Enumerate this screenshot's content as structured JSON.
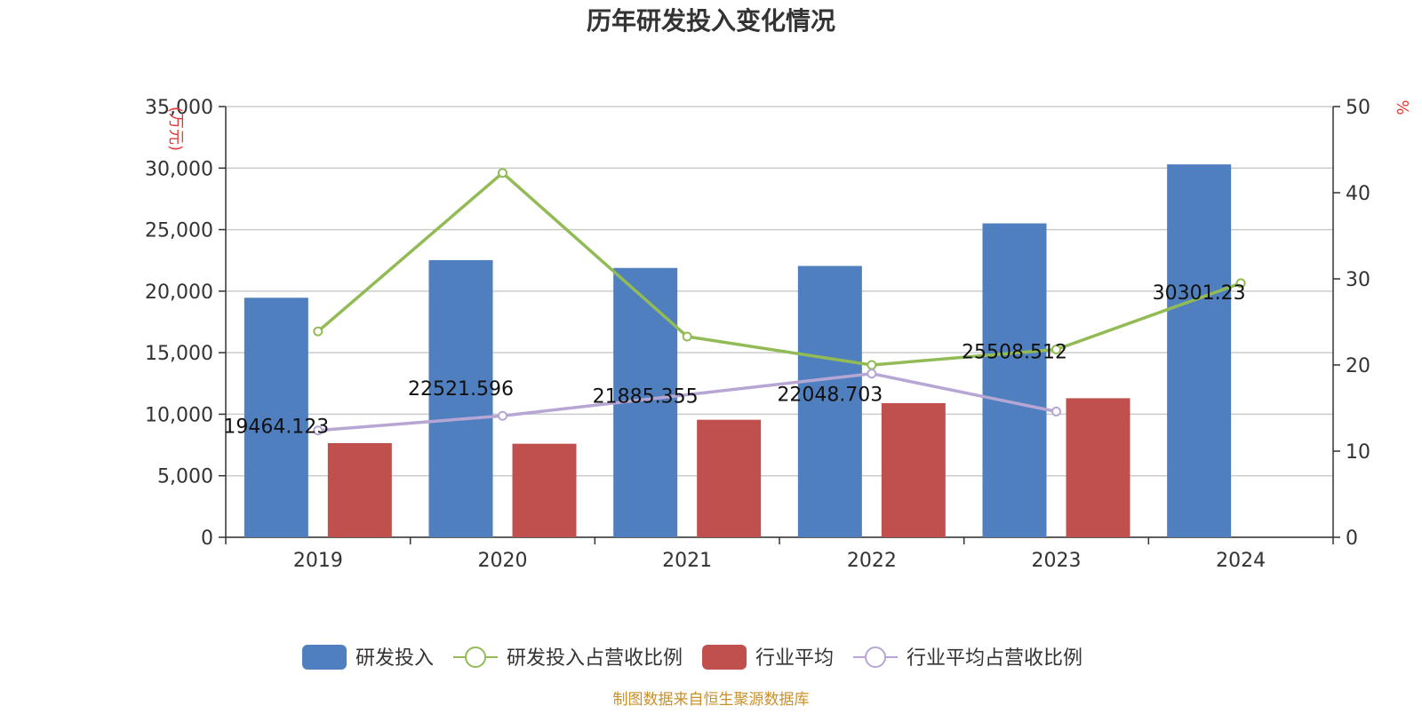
{
  "chart_data": {
    "type": "bar",
    "title": "历年研发投入变化情况",
    "categories": [
      "2019",
      "2020",
      "2021",
      "2022",
      "2023",
      "2024"
    ],
    "y_left": {
      "unit": "(万元)",
      "ticks": [
        "0",
        "5,000",
        "10,000",
        "15,000",
        "20,000",
        "25,000",
        "30,000",
        "35,000"
      ],
      "ylim": [
        0,
        35000
      ]
    },
    "y_right": {
      "unit": "%",
      "ticks": [
        "0",
        "10",
        "20",
        "30",
        "40",
        "50"
      ],
      "ylim": [
        0,
        50
      ]
    },
    "grid": true,
    "legend_position": "bottom",
    "series": [
      {
        "name": "研发投入",
        "kind": "bar",
        "axis": "left",
        "color": "#4f7fbf",
        "values": [
          19464.123,
          22521.596,
          21885.355,
          22048.703,
          25508.512,
          30301.23
        ],
        "labels": [
          "19464.123",
          "22521.596",
          "21885.355",
          "22048.703",
          "25508.512",
          "30301.23"
        ]
      },
      {
        "name": "研发投入占营收比例",
        "kind": "line",
        "axis": "right",
        "color": "#93bb55",
        "values": [
          23.9,
          42.3,
          23.3,
          20.0,
          21.8,
          29.5
        ]
      },
      {
        "name": "行业平均",
        "kind": "bar",
        "axis": "left",
        "color": "#c0504d",
        "values": [
          7650,
          7600,
          9550,
          10900,
          11300,
          null
        ]
      },
      {
        "name": "行业平均占营收比例",
        "kind": "line",
        "axis": "right",
        "color": "#b7a6d3",
        "values": [
          12.4,
          14.1,
          null,
          19.0,
          14.6,
          null
        ]
      }
    ]
  },
  "source": "制图数据来自恒生聚源数据库"
}
